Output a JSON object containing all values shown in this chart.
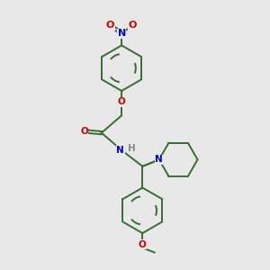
{
  "background_color": "#e8e8e8",
  "bond_color": "#3a6b35",
  "atom_colors": {
    "O": "#cc0000",
    "N": "#0000cc",
    "H": "#888888",
    "C": "#3a6b35"
  },
  "figsize": [
    3.0,
    3.0
  ],
  "dpi": 100,
  "lw": 1.4,
  "font_size": 7.5
}
